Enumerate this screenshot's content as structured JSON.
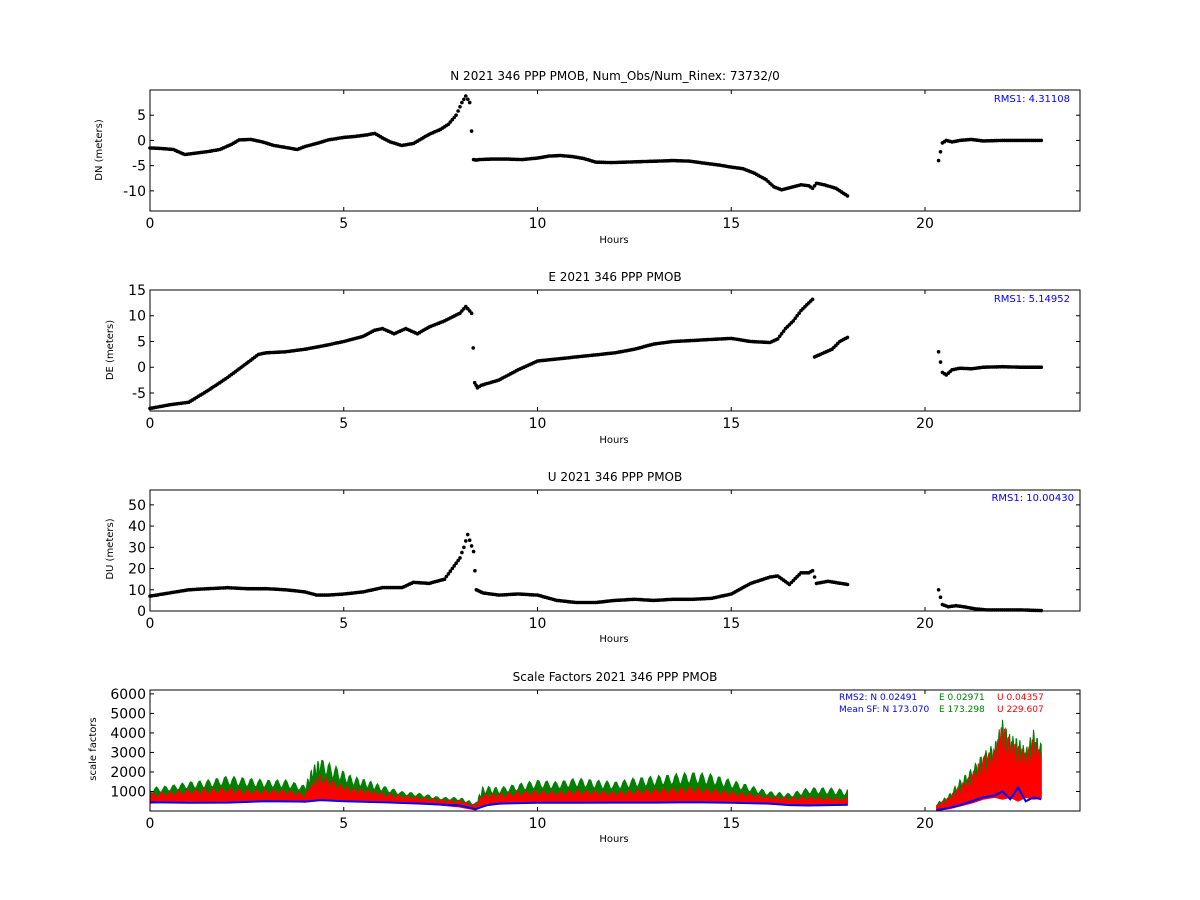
{
  "chart_data": [
    {
      "type": "scatter",
      "title": "N 2021 346 PPP  PMOB, Num_Obs/Num_Rinex: 73732/0",
      "xlabel": "Hours",
      "ylabel": "DN (meters)",
      "xlim": [
        0,
        24
      ],
      "ylim": [
        -14,
        10
      ],
      "xticks": [
        "0",
        "5",
        "10",
        "15",
        "20"
      ],
      "yticks": [
        "-10",
        "-5",
        "0",
        "5"
      ],
      "annotations": [
        "RMS1:  4.31108"
      ],
      "grid": false,
      "series": [
        {
          "color": "#000000",
          "x": [
            0,
            0.3,
            0.6,
            0.9,
            1.2,
            1.5,
            1.8,
            2.1,
            2.3,
            2.6,
            2.9,
            3.2,
            3.5,
            3.8,
            4.0,
            4.3,
            4.6,
            5.0,
            5.3,
            5.6,
            5.8,
            6.0,
            6.2,
            6.5,
            6.8,
            7.0,
            7.2,
            7.5,
            7.7,
            7.9,
            8.05,
            8.15,
            8.25,
            8.35,
            8.42,
            8.5,
            8.8,
            9.2,
            9.6,
            10.0,
            10.3,
            10.6,
            10.9,
            11.2,
            11.5,
            11.9,
            12.3,
            12.7,
            13.1,
            13.5,
            13.9,
            14.3,
            14.7,
            15.0,
            15.3,
            15.6,
            15.9,
            16.1,
            16.3,
            16.5,
            16.8,
            17.0,
            17.1,
            17.2,
            17.4,
            17.7,
            18.0
          ],
          "y": [
            -1.5,
            -1.6,
            -1.8,
            -2.8,
            -2.5,
            -2.2,
            -1.8,
            -0.8,
            0.1,
            0.2,
            -0.3,
            -1.0,
            -1.4,
            -1.8,
            -1.2,
            -0.6,
            0.1,
            0.6,
            0.8,
            1.1,
            1.4,
            0.5,
            -0.3,
            -1.0,
            -0.6,
            0.3,
            1.2,
            2.2,
            3.2,
            5.0,
            7.5,
            8.8,
            7.5,
            -3.8,
            -3.9,
            -3.8,
            -3.7,
            -3.7,
            -3.8,
            -3.5,
            -3.1,
            -3.0,
            -3.2,
            -3.6,
            -4.3,
            -4.4,
            -4.3,
            -4.2,
            -4.1,
            -4.0,
            -4.1,
            -4.5,
            -4.9,
            -5.3,
            -5.6,
            -6.5,
            -7.8,
            -9.2,
            -9.8,
            -9.4,
            -8.8,
            -9.0,
            -9.5,
            -8.5,
            -8.8,
            -9.5,
            -11.0
          ]
        },
        {
          "color": "#000000",
          "x": [
            20.35,
            20.45,
            20.55,
            20.7,
            20.9,
            21.2,
            21.5,
            22.0,
            22.5,
            23.0
          ],
          "y": [
            -4.0,
            -0.5,
            0.0,
            -0.3,
            0.0,
            0.2,
            -0.1,
            0.0,
            0.0,
            0.0
          ]
        }
      ]
    },
    {
      "type": "scatter",
      "title": "E 2021 346 PPP  PMOB",
      "xlabel": "Hours",
      "ylabel": "DE (meters)",
      "xlim": [
        0,
        24
      ],
      "ylim": [
        -8.5,
        15
      ],
      "xticks": [
        "0",
        "5",
        "10",
        "15",
        "20"
      ],
      "yticks": [
        "-5",
        "0",
        "5",
        "10",
        "15"
      ],
      "annotations": [
        "RMS1:  5.14952"
      ],
      "grid": false,
      "series": [
        {
          "color": "#000000",
          "x": [
            0,
            0.5,
            1.0,
            1.5,
            2.0,
            2.5,
            2.8,
            3.0,
            3.5,
            4.0,
            4.5,
            5.0,
            5.5,
            5.8,
            6.0,
            6.3,
            6.6,
            6.9,
            7.2,
            7.6,
            8.0,
            8.15,
            8.3,
            8.38,
            8.45,
            8.55,
            9.0,
            9.5,
            10.0,
            10.5,
            11.0,
            11.5,
            12.0,
            12.5,
            13.0,
            13.5,
            14.0,
            14.5,
            15.0,
            15.5,
            16.0,
            16.2,
            16.4,
            16.6,
            16.8,
            17.0,
            17.1,
            17.15,
            17.3,
            17.6,
            17.8,
            18.0
          ],
          "y": [
            -8.0,
            -7.3,
            -6.8,
            -4.5,
            -2.0,
            0.8,
            2.5,
            2.8,
            3.0,
            3.5,
            4.2,
            5.0,
            6.0,
            7.2,
            7.5,
            6.5,
            7.5,
            6.5,
            7.8,
            9.0,
            10.5,
            11.8,
            10.5,
            -3.0,
            -4.0,
            -3.5,
            -2.5,
            -0.5,
            1.2,
            1.6,
            2.0,
            2.4,
            2.8,
            3.5,
            4.5,
            5.0,
            5.2,
            5.4,
            5.6,
            5.0,
            4.8,
            5.5,
            7.5,
            9.0,
            11.0,
            12.5,
            13.2,
            2.0,
            2.5,
            3.5,
            5.0,
            5.8
          ]
        },
        {
          "color": "#000000",
          "x": [
            20.35,
            20.45,
            20.55,
            20.7,
            20.9,
            21.2,
            21.5,
            22.0,
            22.5,
            23.0
          ],
          "y": [
            3.0,
            -1.0,
            -1.5,
            -0.5,
            -0.2,
            -0.3,
            0.0,
            0.1,
            0.0,
            0.0
          ]
        }
      ]
    },
    {
      "type": "scatter",
      "title": "U 2021 346 PPP  PMOB",
      "xlabel": "Hours",
      "ylabel": "DU (meters)",
      "xlim": [
        0,
        24
      ],
      "ylim": [
        0,
        57
      ],
      "xticks": [
        "0",
        "5",
        "10",
        "15",
        "20"
      ],
      "yticks": [
        "0",
        "10",
        "20",
        "30",
        "40",
        "50"
      ],
      "annotations": [
        "RMS1: 10.00430"
      ],
      "grid": false,
      "series": [
        {
          "color": "#000000",
          "x": [
            0,
            0.5,
            1.0,
            1.5,
            2.0,
            2.5,
            3.0,
            3.5,
            4.0,
            4.3,
            4.6,
            5.0,
            5.5,
            6.0,
            6.5,
            6.8,
            7.2,
            7.6,
            8.0,
            8.1,
            8.2,
            8.35,
            8.42,
            8.6,
            9.0,
            9.5,
            10.0,
            10.5,
            11.0,
            11.5,
            12.0,
            12.5,
            13.0,
            13.5,
            14.0,
            14.5,
            15.0,
            15.5,
            16.0,
            16.2,
            16.5,
            16.8,
            17.0,
            17.1,
            17.2,
            17.5,
            18.0
          ],
          "y": [
            7.0,
            8.5,
            10.0,
            10.5,
            11.0,
            10.5,
            10.5,
            10.0,
            9.0,
            7.5,
            7.5,
            8.0,
            9.0,
            11.0,
            11.0,
            13.5,
            13.0,
            15.0,
            25.0,
            30.0,
            36.0,
            28.0,
            10.0,
            8.5,
            7.5,
            8.0,
            7.5,
            5.0,
            4.0,
            4.0,
            5.0,
            5.5,
            5.0,
            5.5,
            5.5,
            6.0,
            8.0,
            13.0,
            16.0,
            16.5,
            12.5,
            18.0,
            18.0,
            19.0,
            13.0,
            14.0,
            12.5
          ]
        },
        {
          "color": "#000000",
          "x": [
            20.35,
            20.45,
            20.6,
            20.8,
            21.0,
            21.3,
            21.6,
            22.0,
            22.5,
            23.0
          ],
          "y": [
            10.0,
            3.0,
            2.0,
            2.5,
            2.0,
            1.0,
            0.5,
            0.5,
            0.5,
            0.2
          ]
        }
      ]
    },
    {
      "type": "line",
      "title": "Scale Factors 2021 346 PPP  PMOB",
      "xlabel": "Hours",
      "ylabel": "scale factors",
      "xlim": [
        0,
        24
      ],
      "ylim": [
        0,
        6200
      ],
      "xticks": [
        "0",
        "5",
        "10",
        "15",
        "20"
      ],
      "yticks": [
        "1000",
        "2000",
        "3000",
        "4000",
        "5000",
        "6000"
      ],
      "annotations": [
        {
          "text": "RMS2: N  0.02491",
          "color": "#0000ff"
        },
        {
          "text": "E  0.02971",
          "color": "#008000"
        },
        {
          "text": "U  0.04357",
          "color": "#ff0000"
        },
        {
          "text": "Mean SF: N 173.070",
          "color": "#0000ff"
        },
        {
          "text": "E 173.298",
          "color": "#008000"
        },
        {
          "text": "U 229.607",
          "color": "#ff0000"
        }
      ],
      "grid": false,
      "series": [
        {
          "color": "#008000",
          "x": [
            0,
            0.5,
            1.0,
            1.5,
            2.0,
            2.5,
            3.0,
            3.5,
            4.0,
            4.2,
            4.4,
            4.8,
            5.2,
            5.6,
            6.0,
            6.5,
            7.0,
            7.5,
            8.0,
            8.4,
            8.6,
            9.0,
            9.5,
            10.0,
            10.5,
            11.0,
            11.5,
            12.0,
            12.5,
            13.0,
            13.5,
            14.0,
            14.5,
            15.0,
            15.5,
            16.0,
            16.5,
            17.0,
            17.5,
            18.0
          ],
          "y_low": [
            500,
            650,
            700,
            650,
            700,
            650,
            700,
            650,
            600,
            800,
            900,
            750,
            700,
            650,
            600,
            550,
            500,
            400,
            300,
            100,
            350,
            500,
            550,
            600,
            650,
            650,
            600,
            600,
            600,
            650,
            650,
            650,
            600,
            600,
            550,
            450,
            400,
            450,
            400,
            350
          ],
          "y_high": [
            1200,
            1300,
            1500,
            1600,
            1800,
            1700,
            1600,
            1600,
            1300,
            2300,
            2700,
            2300,
            1800,
            1600,
            1300,
            1000,
            900,
            700,
            700,
            400,
            1300,
            1200,
            1400,
            1600,
            1500,
            1700,
            1600,
            1500,
            1700,
            1800,
            1900,
            2000,
            1900,
            1600,
            1300,
            1000,
            900,
            1200,
            1200,
            1100
          ]
        },
        {
          "color": "#ff0000",
          "x": [
            0,
            0.5,
            1.0,
            1.5,
            2.0,
            2.5,
            3.0,
            3.5,
            4.0,
            4.2,
            4.4,
            4.8,
            5.2,
            5.6,
            6.0,
            6.5,
            7.0,
            7.5,
            8.0,
            8.4,
            8.6,
            9.0,
            9.5,
            10.0,
            10.5,
            11.0,
            11.5,
            12.0,
            12.5,
            13.0,
            13.5,
            14.0,
            14.5,
            15.0,
            15.5,
            16.0,
            16.5,
            17.0,
            17.5,
            18.0
          ],
          "y_low": [
            400,
            450,
            500,
            450,
            500,
            450,
            500,
            500,
            450,
            500,
            600,
            550,
            500,
            500,
            450,
            400,
            380,
            300,
            200,
            50,
            250,
            350,
            400,
            450,
            450,
            450,
            450,
            450,
            450,
            450,
            450,
            450,
            450,
            450,
            400,
            350,
            300,
            300,
            300,
            300
          ],
          "y_high": [
            900,
            1000,
            1100,
            1150,
            1200,
            1100,
            1100,
            1100,
            900,
            1500,
            1900,
            1500,
            1200,
            1100,
            950,
            800,
            700,
            600,
            550,
            300,
            900,
            900,
            1000,
            1050,
            1000,
            1100,
            1050,
            1000,
            1100,
            1150,
            1200,
            1250,
            1150,
            1000,
            900,
            750,
            700,
            750,
            700,
            650
          ]
        },
        {
          "color": "#0000ff",
          "x": [
            0,
            1,
            2,
            3,
            4,
            4.4,
            5,
            6,
            7,
            8,
            8.4,
            8.7,
            9,
            10,
            11,
            12,
            13,
            14,
            15,
            16,
            16.5,
            17,
            17.5,
            18
          ],
          "y": [
            450,
            420,
            430,
            500,
            480,
            560,
            500,
            450,
            380,
            280,
            100,
            300,
            380,
            420,
            420,
            430,
            430,
            450,
            420,
            380,
            300,
            280,
            300,
            320
          ]
        },
        {
          "color": "#008000",
          "x": [
            20.3,
            20.6,
            20.9,
            21.2,
            21.5,
            21.8,
            22.0,
            22.2,
            22.4,
            22.6,
            22.8,
            23.0
          ],
          "y_low": [
            50,
            150,
            300,
            500,
            700,
            900,
            700,
            800,
            600,
            900,
            700,
            800
          ],
          "y_high": [
            400,
            800,
            1600,
            2200,
            3000,
            3500,
            4700,
            3900,
            3800,
            3200,
            4200,
            3400
          ]
        },
        {
          "color": "#ff0000",
          "x": [
            20.3,
            20.6,
            20.9,
            21.2,
            21.5,
            21.8,
            22.0,
            22.2,
            22.4,
            22.6,
            22.8,
            23.0
          ],
          "y_low": [
            30,
            100,
            250,
            400,
            600,
            700,
            600,
            700,
            500,
            700,
            600,
            650
          ],
          "y_high": [
            300,
            700,
            1300,
            1900,
            2800,
            3200,
            4500,
            3600,
            3400,
            3000,
            3800,
            3000
          ]
        },
        {
          "color": "#0000ff",
          "x": [
            20.3,
            20.6,
            20.9,
            21.2,
            21.5,
            21.8,
            22.0,
            22.2,
            22.4,
            22.6,
            22.8,
            23.0
          ],
          "y": [
            50,
            150,
            300,
            500,
            700,
            800,
            1000,
            600,
            1200,
            500,
            700,
            600
          ]
        }
      ]
    }
  ]
}
